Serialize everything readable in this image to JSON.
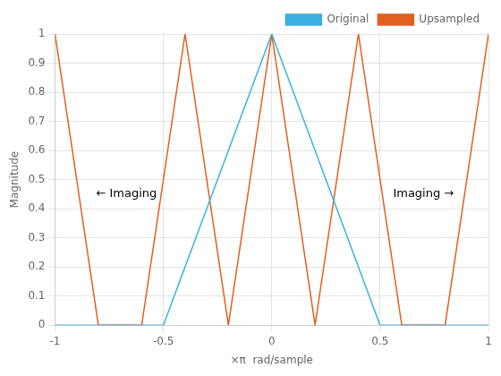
{
  "chart_data": {
    "type": "line",
    "xlabel": "×π  rad/sample",
    "ylabel": "Magnitude",
    "xlim": [
      -1,
      1
    ],
    "ylim": [
      0,
      1
    ],
    "xticks": [
      -1,
      -0.5,
      0,
      0.5,
      1
    ],
    "yticks": [
      0,
      0.1,
      0.2,
      0.3,
      0.4,
      0.5,
      0.6,
      0.7,
      0.8,
      0.9,
      1.0
    ],
    "grid": true,
    "legend": "upper right",
    "series": [
      {
        "name": "Original",
        "color": "#3cb0e0",
        "x": [
          -1.0,
          -0.5,
          0.0,
          0.5,
          1.0
        ],
        "values": [
          0.0,
          0.0,
          1.0,
          0.0,
          0.0
        ]
      },
      {
        "name": "Upsampled",
        "color": "#e06020",
        "x": [
          -1.0,
          -0.8,
          -0.6,
          -0.4,
          -0.2,
          0.0,
          0.2,
          0.4,
          0.6,
          0.8,
          1.0
        ],
        "values": [
          1.0,
          0.0,
          0.0,
          1.0,
          0.0,
          1.0,
          0.0,
          1.0,
          0.0,
          0.0,
          1.0
        ]
      }
    ],
    "annotations": [
      {
        "text": "← Imaging",
        "x": -0.67,
        "y": 0.45
      },
      {
        "text": "Imaging →",
        "x": 0.7,
        "y": 0.45
      }
    ]
  }
}
